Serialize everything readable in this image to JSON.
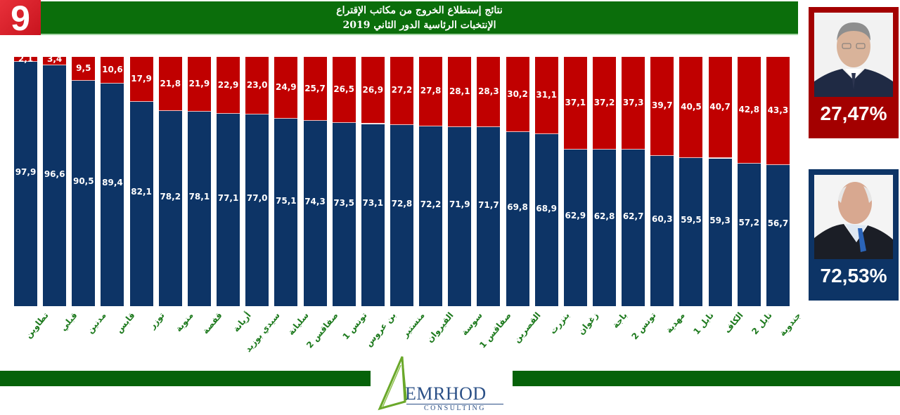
{
  "header": {
    "channel_logo": "9",
    "title_line1": "نتائج إستطلاع الخروج من مكاتب الإقتراع",
    "title_line2": "الإنتخبات الرئاسية الدور الثاني 2019"
  },
  "candidates": [
    {
      "color": "#a30000",
      "percent": "27,47%"
    },
    {
      "color": "#0d3466",
      "percent": "72,53%"
    }
  ],
  "footer": {
    "brand_name": "EMRHOD",
    "brand_sub": "CONSULTING"
  },
  "colors": {
    "red_series": "#c00000",
    "blue_series": "#0d3466",
    "header_green": "#0b6e0b",
    "label_green": "#1e7a1e"
  },
  "chart_data": {
    "type": "bar",
    "stacked": true,
    "percent_stacked": true,
    "title": "نتائج إستطلاع الخروج من مكاتب الإقتراع — الإنتخبات الرئاسية الدور الثاني 2019",
    "xlabel": "",
    "ylabel": "",
    "ylim": [
      0,
      100
    ],
    "grid": false,
    "legend": "candidate panels on right (red 27,47%, blue 72,53%)",
    "categories": [
      "تطاوين",
      "قبلي",
      "مدنين",
      "قابس",
      "توزر",
      "منوبة",
      "قفصة",
      "أريانة",
      "سيدي بوزيد",
      "سليانة",
      "صفاقس 2",
      "تونس 1",
      "بن عروس",
      "منستير",
      "القيروان",
      "سوسة",
      "صفاقس 1",
      "القصرين",
      "بنزرت",
      "زغوان",
      "باجة",
      "تونس 2",
      "مهدية",
      "نابل 1",
      "الكاف",
      "نابل 2",
      "جندوبة"
    ],
    "series": [
      {
        "name": "red",
        "color": "#c00000",
        "values": [
          2.1,
          3.4,
          9.5,
          10.6,
          17.9,
          21.8,
          21.9,
          22.9,
          23.0,
          24.9,
          25.7,
          26.5,
          26.9,
          27.2,
          27.8,
          28.1,
          28.3,
          30.2,
          31.1,
          37.1,
          37.2,
          37.3,
          39.7,
          40.5,
          40.7,
          42.8,
          43.3
        ]
      },
      {
        "name": "blue",
        "color": "#0d3466",
        "values": [
          97.9,
          96.6,
          90.5,
          89.4,
          82.1,
          78.2,
          78.1,
          77.1,
          77.0,
          75.1,
          74.3,
          73.5,
          73.1,
          72.8,
          72.2,
          71.9,
          71.7,
          69.8,
          68.9,
          62.9,
          62.8,
          62.7,
          60.3,
          59.5,
          59.3,
          57.2,
          56.7
        ]
      }
    ],
    "labels_red": [
      "2,1",
      "3,4",
      "9,5",
      "10,6",
      "17,9",
      "21,8",
      "21,9",
      "22,9",
      "23,0",
      "24,9",
      "25,7",
      "26,5",
      "26,9",
      "27,2",
      "27,8",
      "28,1",
      "28,3",
      "30,2",
      "31,1",
      "37,1",
      "37,2",
      "37,3",
      "39,7",
      "40,5",
      "40,7",
      "42,8",
      "43,3"
    ],
    "labels_blue": [
      "97,9",
      "96,6",
      "90,5",
      "89,4",
      "82,1",
      "78,2",
      "78,1",
      "77,1",
      "77,0",
      "75,1",
      "74,3",
      "73,5",
      "73,1",
      "72,8",
      "72,2",
      "71,9",
      "71,7",
      "69,8",
      "68,9",
      "62,9",
      "62,8",
      "62,7",
      "60,3",
      "59,5",
      "59,3",
      "57,2",
      "56,7"
    ]
  }
}
